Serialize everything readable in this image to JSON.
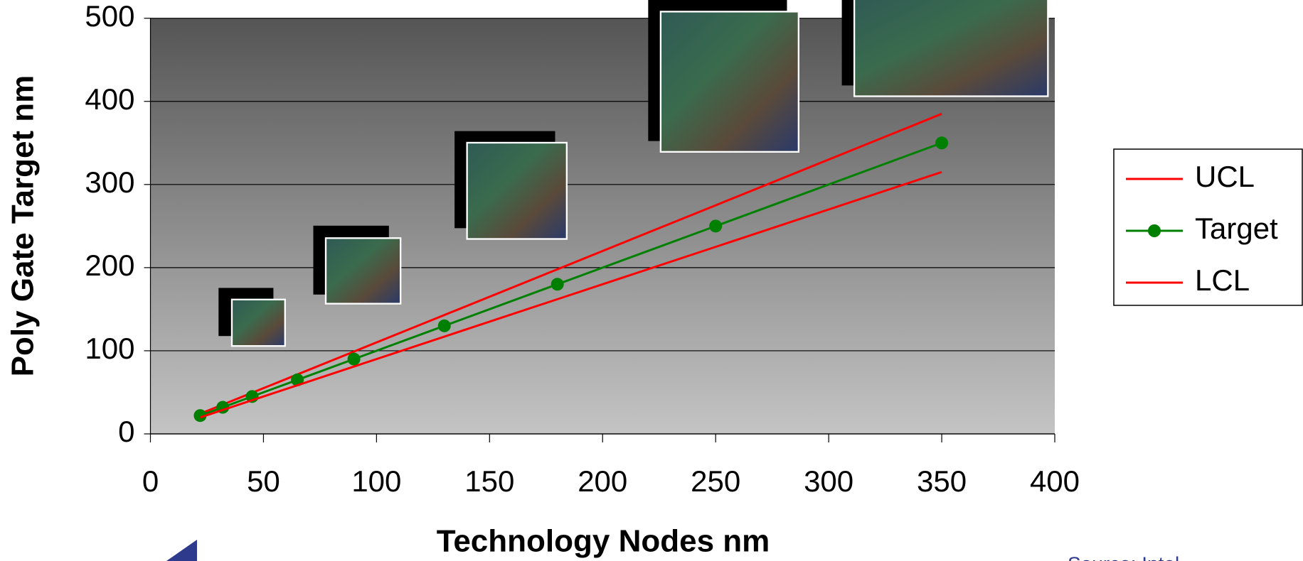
{
  "chart_data": {
    "type": "line",
    "x_label": "Technology Nodes nm",
    "y_label": "Poly Gate Target nm",
    "source": "Source: Intel",
    "x": [
      22,
      32,
      45,
      65,
      90,
      130,
      180,
      250,
      350
    ],
    "series": [
      {
        "name": "UCL",
        "color": "#ff0000",
        "marker": false,
        "values": [
          24.2,
          35.2,
          49.5,
          71.5,
          99,
          143,
          198,
          275,
          385
        ]
      },
      {
        "name": "Target",
        "color": "#008000",
        "marker": true,
        "values": [
          22,
          32,
          45,
          65,
          90,
          130,
          180,
          250,
          350
        ]
      },
      {
        "name": "LCL",
        "color": "#ff0000",
        "marker": false,
        "values": [
          19.8,
          28.8,
          40.5,
          58.5,
          81,
          117,
          162,
          225,
          315
        ]
      }
    ],
    "xlim": [
      0,
      400
    ],
    "xticks": [
      0,
      50,
      100,
      150,
      200,
      250,
      300,
      350,
      400
    ],
    "ylim": [
      0,
      500
    ],
    "yticks": [
      0,
      100,
      200,
      300,
      400,
      500
    ],
    "grid": true,
    "legend": "right"
  }
}
